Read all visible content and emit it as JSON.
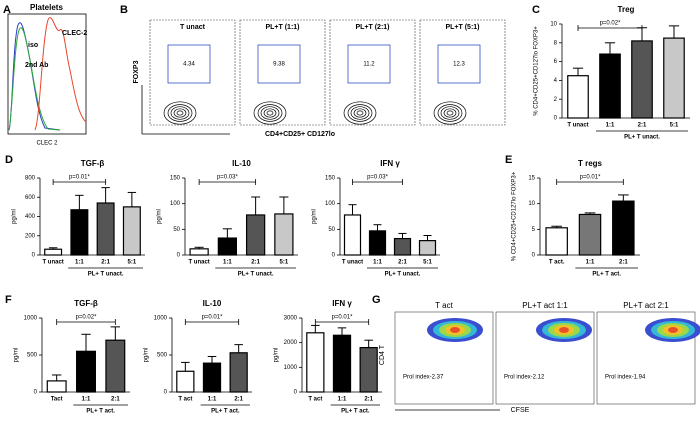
{
  "panel_letters": [
    "A",
    "B",
    "C",
    "D",
    "E",
    "F",
    "G"
  ],
  "histogram": {
    "title": "Platelets",
    "labels": [
      "iso",
      "2nd Ab",
      "CLEC-2"
    ],
    "xlabel": "CLEC 2"
  },
  "contour": {
    "ylabel": "FOXP3",
    "xlabel": "CD4+CD25+ CD127lo",
    "plots": [
      {
        "title": "T unact",
        "gate": 4.34
      },
      {
        "title": "PL+T (1:1)",
        "gate": 9.38
      },
      {
        "title": "PL+T (2:1)",
        "gate": 11.2
      },
      {
        "title": "PL+T (5:1)",
        "gate": 12.3
      }
    ]
  },
  "density": {
    "ylabel": "CD4 T",
    "xlabel": "CFSE",
    "plots": [
      {
        "title": "T act",
        "index": "Prol index-2.37"
      },
      {
        "title": "PL+T act 1:1",
        "index": "Prol index-2.12"
      },
      {
        "title": "PL+T act 2:1",
        "index": "Prol index-1.94"
      }
    ]
  },
  "chart_data": [
    {
      "type": "bar",
      "title": "Treg",
      "ylabel": "% CD4+CD25+CD127lo FOXP3+",
      "categories": [
        "T unact",
        "1:1",
        "2:1",
        "5:1"
      ],
      "values": [
        4.5,
        6.8,
        8.2,
        8.5
      ],
      "errors": [
        0.8,
        1.2,
        1.4,
        1.3
      ],
      "colors": [
        "#ffffff",
        "#000000",
        "#555555",
        "#c8c8c8"
      ],
      "ylim": [
        0,
        10
      ],
      "yticks": [
        0,
        2,
        4,
        6,
        8,
        10
      ],
      "annotation": "p=0.02*",
      "group_label": "PL+ T unact."
    },
    {
      "type": "bar",
      "title": "TGF-β",
      "ylabel": "pg/ml",
      "categories": [
        "T unact",
        "1:1",
        "2:1",
        "5:1"
      ],
      "values": [
        60,
        470,
        540,
        500
      ],
      "errors": [
        15,
        150,
        160,
        150
      ],
      "colors": [
        "#ffffff",
        "#000000",
        "#555555",
        "#c8c8c8"
      ],
      "ylim": [
        0,
        800
      ],
      "yticks": [
        0,
        200,
        400,
        600,
        800
      ],
      "annotation": "p=0.01*",
      "group_label": "PL+ T unact."
    },
    {
      "type": "bar",
      "title": "IL-10",
      "ylabel": "pg/ml",
      "categories": [
        "T unact",
        "1:1",
        "2:1",
        "5:1"
      ],
      "values": [
        12,
        33,
        78,
        80
      ],
      "errors": [
        3,
        18,
        35,
        33
      ],
      "colors": [
        "#ffffff",
        "#000000",
        "#555555",
        "#c8c8c8"
      ],
      "ylim": [
        0,
        150
      ],
      "yticks": [
        0,
        50,
        100,
        150
      ],
      "annotation": "p=0.03*",
      "group_label": "PL+ T unact."
    },
    {
      "type": "bar",
      "title": "IFN γ",
      "ylabel": "pg/ml",
      "categories": [
        "T unact",
        "1:1",
        "2:1",
        "5:1"
      ],
      "values": [
        78,
        47,
        32,
        28
      ],
      "errors": [
        20,
        12,
        10,
        10
      ],
      "colors": [
        "#ffffff",
        "#000000",
        "#555555",
        "#c8c8c8"
      ],
      "ylim": [
        0,
        150
      ],
      "yticks": [
        0,
        50,
        100,
        150
      ],
      "annotation": "p=0.03*",
      "group_label": "PL+ T unact."
    },
    {
      "type": "bar",
      "title": "T regs",
      "ylabel": "% CD4+CD25+CD127lo FOXP3+",
      "categories": [
        "T act.",
        "1:1",
        "2:1"
      ],
      "values": [
        5.3,
        7.9,
        10.5
      ],
      "errors": [
        0.3,
        0.3,
        1.2
      ],
      "colors": [
        "#ffffff",
        "#777777",
        "#000000"
      ],
      "ylim": [
        0,
        15
      ],
      "yticks": [
        0,
        5,
        10,
        15
      ],
      "annotation": "p=0.01*",
      "group_label": "PL+ T act."
    },
    {
      "type": "bar",
      "title": "TGF-β",
      "ylabel": "pg/ml",
      "categories": [
        "Tact",
        "1:1",
        "2:1"
      ],
      "values": [
        150,
        550,
        700
      ],
      "errors": [
        80,
        230,
        180
      ],
      "colors": [
        "#ffffff",
        "#000000",
        "#555555"
      ],
      "ylim": [
        0,
        1000
      ],
      "yticks": [
        0,
        500,
        1000
      ],
      "annotation": "p=0.02*",
      "group_label": "PL+ T act."
    },
    {
      "type": "bar",
      "title": "IL-10",
      "ylabel": "pg/ml",
      "categories": [
        "T act",
        "1:1",
        "2:1"
      ],
      "values": [
        280,
        390,
        530
      ],
      "errors": [
        120,
        90,
        110
      ],
      "colors": [
        "#ffffff",
        "#000000",
        "#555555"
      ],
      "ylim": [
        0,
        1000
      ],
      "yticks": [
        0,
        500,
        1000
      ],
      "annotation": "p=0.01*",
      "group_label": "PL+ T act."
    },
    {
      "type": "bar",
      "title": "IFN γ",
      "ylabel": "pg/ml",
      "categories": [
        "T act",
        "1:1",
        "2:1"
      ],
      "values": [
        2400,
        2300,
        1800
      ],
      "errors": [
        300,
        300,
        300
      ],
      "colors": [
        "#ffffff",
        "#000000",
        "#555555"
      ],
      "ylim": [
        0,
        3000
      ],
      "yticks": [
        0,
        1000,
        2000,
        3000
      ],
      "annotation": "p=0.01*",
      "group_label": "PL+ T act."
    }
  ]
}
